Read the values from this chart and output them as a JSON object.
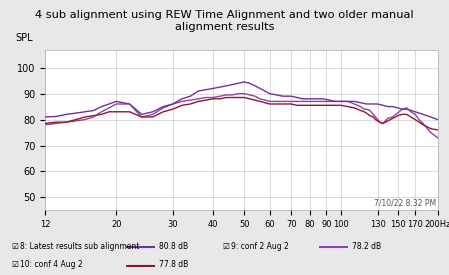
{
  "title": "4 sub alignment using REW Time Alignment and two older manual\nalignment results",
  "ylabel": "SPL",
  "xlabel_ticks": [
    12,
    20,
    30,
    40,
    50,
    60,
    70,
    80,
    90,
    100,
    130,
    150,
    170,
    200
  ],
  "xlabel_ticklabels": [
    "12",
    "20",
    "30",
    "40",
    "50",
    "60",
    "70",
    "80",
    "90",
    "100",
    "130",
    "150",
    "170",
    "200Hz"
  ],
  "ylim": [
    45,
    107
  ],
  "yticks": [
    50,
    60,
    70,
    80,
    90,
    100
  ],
  "timestamp": "7/10/22 8:32 PM",
  "bg_color": "#e8e8e8",
  "plot_bg_color": "#ffffff",
  "grid_color": "#cccccc",
  "legend": [
    {
      "label": "8: Latest results sub alignment",
      "color": "#7030a0",
      "value": "80.8 dB"
    },
    {
      "label": "9: conf 2 Aug 2",
      "color": "#9040b0",
      "value": "78.2 dB"
    },
    {
      "label": "10: conf 4 Aug 2",
      "color": "#8B1a2a",
      "value": "77.8 dB"
    }
  ],
  "s8_freqs": [
    12,
    13,
    14,
    15,
    16,
    17,
    18,
    19,
    20,
    22,
    24,
    26,
    28,
    30,
    32,
    34,
    36,
    38,
    40,
    42,
    44,
    46,
    48,
    50,
    52,
    54,
    56,
    58,
    60,
    63,
    66,
    70,
    73,
    76,
    80,
    84,
    88,
    92,
    96,
    100,
    105,
    110,
    115,
    120,
    125,
    130,
    135,
    140,
    145,
    150,
    155,
    160,
    165,
    170,
    175,
    180,
    185,
    190,
    200
  ],
  "s8_vals": [
    81.0,
    81.2,
    82.0,
    82.5,
    83.0,
    83.5,
    85.0,
    86.0,
    87.0,
    86.0,
    82.0,
    83.0,
    85.0,
    86.0,
    88.0,
    89.0,
    91.0,
    91.5,
    92.0,
    92.5,
    93.0,
    93.5,
    94.0,
    94.5,
    94.0,
    93.0,
    92.0,
    91.0,
    90.0,
    89.5,
    89.0,
    89.0,
    88.5,
    88.0,
    88.0,
    88.0,
    88.0,
    87.5,
    87.0,
    87.0,
    87.0,
    87.0,
    86.5,
    86.0,
    86.0,
    86.0,
    85.5,
    85.0,
    85.0,
    84.5,
    84.0,
    84.0,
    83.5,
    83.0,
    82.5,
    82.0,
    81.5,
    81.0,
    80.0
  ],
  "s9_freqs": [
    12,
    13,
    14,
    15,
    16,
    17,
    18,
    19,
    20,
    22,
    24,
    26,
    28,
    30,
    32,
    34,
    36,
    38,
    40,
    42,
    44,
    46,
    48,
    50,
    52,
    54,
    56,
    58,
    60,
    63,
    66,
    70,
    73,
    76,
    80,
    84,
    88,
    92,
    96,
    100,
    105,
    110,
    115,
    118,
    120,
    123,
    126,
    128,
    130,
    132,
    135,
    140,
    145,
    148,
    150,
    155,
    160,
    165,
    170,
    175,
    180,
    190,
    200
  ],
  "s9_vals": [
    78.0,
    78.5,
    79.0,
    79.5,
    80.0,
    81.0,
    83.0,
    84.5,
    86.0,
    86.0,
    81.0,
    82.0,
    84.5,
    86.0,
    87.0,
    87.5,
    88.0,
    88.5,
    88.5,
    89.0,
    89.5,
    89.5,
    90.0,
    90.0,
    89.5,
    89.0,
    88.0,
    87.5,
    87.0,
    87.0,
    87.0,
    87.0,
    87.0,
    87.0,
    87.0,
    87.0,
    87.0,
    87.0,
    87.0,
    87.0,
    87.0,
    86.0,
    85.0,
    84.0,
    84.0,
    83.5,
    82.0,
    81.0,
    80.0,
    79.0,
    78.5,
    80.5,
    81.0,
    82.0,
    82.5,
    84.0,
    84.5,
    83.0,
    82.0,
    80.0,
    78.5,
    75.0,
    73.0
  ],
  "s10_freqs": [
    12,
    13,
    14,
    15,
    16,
    17,
    18,
    19,
    20,
    22,
    24,
    26,
    28,
    30,
    32,
    34,
    36,
    38,
    40,
    42,
    44,
    46,
    48,
    50,
    52,
    54,
    56,
    58,
    60,
    63,
    66,
    70,
    73,
    76,
    80,
    84,
    88,
    92,
    96,
    100,
    105,
    110,
    115,
    118,
    120,
    123,
    126,
    128,
    130,
    132,
    135,
    140,
    145,
    148,
    150,
    155,
    160,
    165,
    170,
    175,
    180,
    190,
    200
  ],
  "s10_vals": [
    78.5,
    79.0,
    79.0,
    80.0,
    81.0,
    81.5,
    82.0,
    83.0,
    83.0,
    83.0,
    81.0,
    81.0,
    83.0,
    84.0,
    85.5,
    86.0,
    87.0,
    87.5,
    88.0,
    88.0,
    88.5,
    88.5,
    88.5,
    88.5,
    88.0,
    87.5,
    87.0,
    86.5,
    86.0,
    86.0,
    86.0,
    86.0,
    85.5,
    85.5,
    85.5,
    85.5,
    85.5,
    85.5,
    85.5,
    85.5,
    85.0,
    84.5,
    83.5,
    83.0,
    82.5,
    81.5,
    81.0,
    80.0,
    79.5,
    79.0,
    78.5,
    79.5,
    80.5,
    81.0,
    81.5,
    82.0,
    82.0,
    81.0,
    80.0,
    79.0,
    78.0,
    76.5,
    76.0
  ]
}
